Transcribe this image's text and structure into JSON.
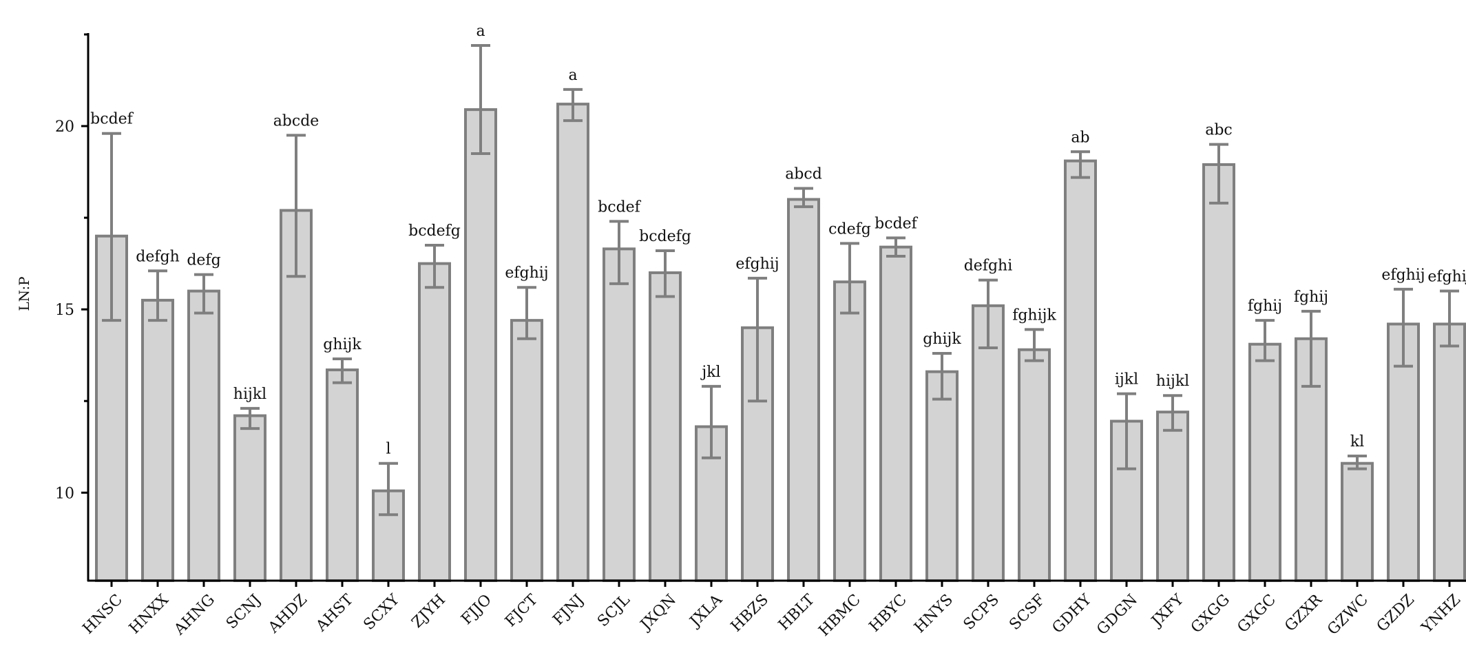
{
  "chart_data": {
    "type": "bar",
    "title": "",
    "xlabel": "",
    "ylabel": "LN:P",
    "ylim": [
      7.6,
      22.5
    ],
    "yticks": [
      10,
      15,
      20
    ],
    "grid": false,
    "legend": "none",
    "colors": {
      "bar_fill": "#d3d3d3",
      "bar_stroke": "#7f7f7f",
      "error_bar": "#7f7f7f",
      "axis": "#000000"
    },
    "categories": [
      "HNSC",
      "HNXX",
      "AHNG",
      "SCNJ",
      "AHDZ",
      "AHST",
      "SCXY",
      "ZJYH",
      "FJJO",
      "FJCT",
      "FJNJ",
      "SCJL",
      "JXQN",
      "JXLA",
      "HBZS",
      "HBLT",
      "HBMC",
      "HBYC",
      "HNYS",
      "SCPS",
      "SCSF",
      "GDHY",
      "GDGN",
      "JXFY",
      "GXGG",
      "GXGC",
      "GZXR",
      "GZWC",
      "GZDZ",
      "YNHZ"
    ],
    "values": [
      17.0,
      15.25,
      15.5,
      12.1,
      17.7,
      13.35,
      10.05,
      16.25,
      20.45,
      14.7,
      20.6,
      16.65,
      16.0,
      11.8,
      14.5,
      18.0,
      15.75,
      16.7,
      13.3,
      15.1,
      13.9,
      19.05,
      11.95,
      12.2,
      18.95,
      14.05,
      14.2,
      10.8,
      14.6,
      14.6
    ],
    "error_upper": [
      19.8,
      16.05,
      15.95,
      12.3,
      19.75,
      13.65,
      10.8,
      16.75,
      22.2,
      15.6,
      21.0,
      17.4,
      16.6,
      12.9,
      15.85,
      18.3,
      16.8,
      16.95,
      13.8,
      15.8,
      14.45,
      19.3,
      12.7,
      12.65,
      19.5,
      14.7,
      14.95,
      11.0,
      15.55,
      15.5
    ],
    "error_lower": [
      14.7,
      14.7,
      14.9,
      11.75,
      15.9,
      13.0,
      9.4,
      15.6,
      19.25,
      14.2,
      20.15,
      15.7,
      15.35,
      10.95,
      12.5,
      17.8,
      14.9,
      16.45,
      12.55,
      13.95,
      13.6,
      18.6,
      10.65,
      11.7,
      17.9,
      13.6,
      12.9,
      10.65,
      13.45,
      14.0
    ],
    "significance_letters": [
      "bcdef",
      "defgh",
      "defg",
      "hijkl",
      "abcde",
      "ghijk",
      "l",
      "bcdefg",
      "a",
      "efghij",
      "a",
      "bcdef",
      "bcdefg",
      "jkl",
      "efghij",
      "abcd",
      "cdefg",
      "bcdef",
      "ghijk",
      "defghi",
      "fghijk",
      "ab",
      "ijkl",
      "hijkl",
      "abc",
      "fghij",
      "fghij",
      "kl",
      "efghij",
      "efghij"
    ]
  }
}
